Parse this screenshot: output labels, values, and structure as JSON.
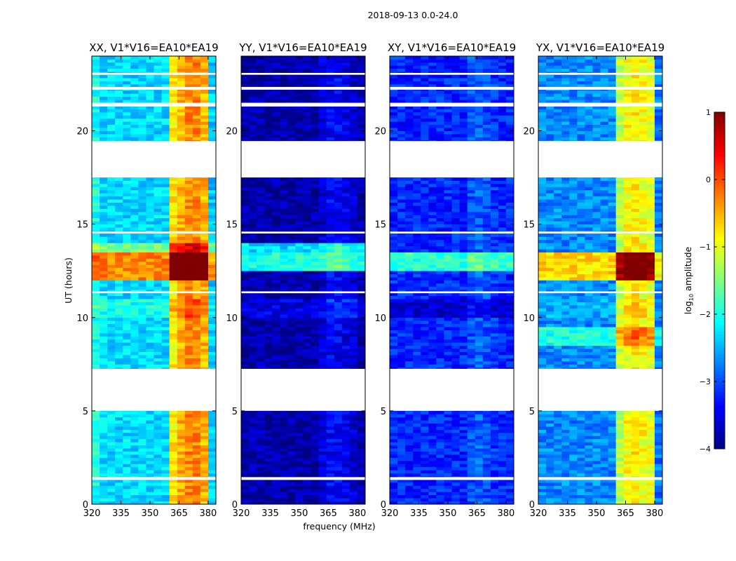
{
  "chart_data": {
    "type": "heatmap",
    "suptitle": "2018-09-13 0.0-24.0",
    "xlabel": "frequency (MHz)",
    "ylabel": "UT (hours)",
    "xlim": [
      320,
      384
    ],
    "ylim": [
      0,
      24
    ],
    "xticks": [
      320,
      335,
      350,
      365,
      380
    ],
    "yticks": [
      0,
      5,
      10,
      15,
      20
    ],
    "colorbar": {
      "label": "log10 amplitude",
      "label_main": "log",
      "label_sub": "10",
      "label_rest": " amplitude",
      "range": [
        -4,
        1
      ],
      "ticks": [
        "−4",
        "−3",
        "−2",
        "−1",
        "0",
        "1"
      ],
      "tick_values": [
        -4,
        -3,
        -2,
        -1,
        0,
        1
      ],
      "colormap": "jet"
    },
    "freq_bin_width_mhz": 4,
    "time_bin_hours": 0.5,
    "flagged_hours": [
      [
        17.5,
        19.45
      ],
      [
        5.0,
        7.25
      ],
      [
        21.3,
        21.5
      ],
      [
        22.2,
        22.35
      ],
      [
        23.0,
        23.1
      ],
      [
        1.3,
        1.45
      ],
      [
        14.5,
        14.6
      ],
      [
        11.3,
        11.4
      ]
    ],
    "panels": [
      {
        "title": "XX, V1*V16=EA10*EA19",
        "freq_profile": [
          -2.0,
          -2.3,
          -2.3,
          -2.3,
          -2.3,
          -2.3,
          -2.3,
          -2.3,
          -2.3,
          -2.3,
          -0.8,
          -0.5,
          -0.3,
          -0.3,
          -0.5,
          -2.4
        ],
        "time_offsets": {
          "24": 2.0,
          "25": 2.0,
          "26": 2.0,
          "27": 0.8,
          "20": 0.3,
          "21": 0.3
        }
      },
      {
        "title": "YY, V1*V16=EA10*EA19",
        "freq_profile": [
          -3.8,
          -3.8,
          -3.8,
          -3.8,
          -3.8,
          -3.8,
          -3.8,
          -3.8,
          -3.8,
          -3.8,
          -3.6,
          -3.4,
          -3.4,
          -3.5,
          -3.6,
          -3.8
        ],
        "time_offsets": {
          "25": 1.8,
          "26": 1.8,
          "27": 1.5,
          "20": 0.3,
          "21": 0.3
        }
      },
      {
        "title": "XY, V1*V16=EA10*EA19",
        "freq_profile": [
          -3.2,
          -3.2,
          -3.2,
          -3.2,
          -3.2,
          -3.2,
          -3.2,
          -3.2,
          -3.2,
          -3.2,
          -3.0,
          -2.9,
          -3.0,
          -3.1,
          -3.2,
          -3.2
        ],
        "time_offsets": {
          "25": 1.3,
          "26": 1.3,
          "20": -0.4,
          "21": -0.4
        }
      },
      {
        "title": "YX, V1*V16=EA10*EA19",
        "freq_profile": [
          -2.7,
          -2.7,
          -2.7,
          -2.7,
          -2.7,
          -2.7,
          -2.7,
          -2.7,
          -2.7,
          -2.7,
          -1.2,
          -0.9,
          -0.8,
          -0.9,
          -1.0,
          -2.8
        ],
        "time_offsets": {
          "24": 2.0,
          "25": 2.0,
          "26": 2.0,
          "17": 0.7,
          "18": 0.7,
          "20": 0.2,
          "21": 0.2
        }
      }
    ]
  }
}
